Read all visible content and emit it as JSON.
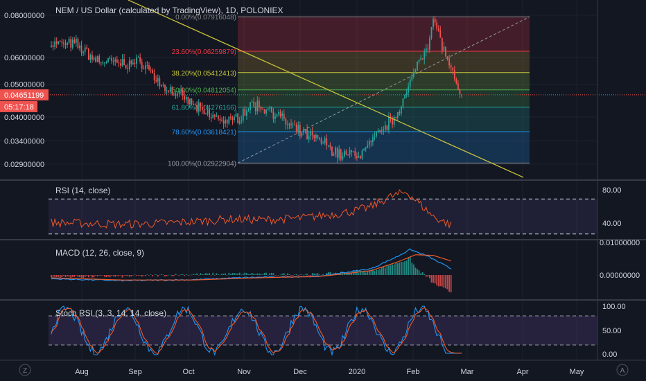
{
  "header": {
    "title": "NEM / US Dollar (calculated by TradingView), 1D, POLONIEX"
  },
  "price_axis": {
    "ticks": [
      "0.08000000",
      "0.06000000",
      "0.05000000",
      "0.04000000",
      "0.03400000",
      "0.02900000"
    ],
    "current_price_label": "0.04651199",
    "countdown_label": "05:17:18"
  },
  "time_axis": {
    "labels": [
      "Aug",
      "Sep",
      "Oct",
      "Nov",
      "Dec",
      "2020",
      "Feb",
      "Mar",
      "Apr",
      "May"
    ]
  },
  "fib_levels": [
    {
      "label": "0.00%(0.07916048)",
      "value": 0.07916048,
      "color": "#888888"
    },
    {
      "label": "23.60%(0.06259879)",
      "value": 0.06259879,
      "color": "#f23645"
    },
    {
      "label": "38.20%(0.05412413)",
      "value": 0.05412413,
      "color": "#c8c83a"
    },
    {
      "label": "50.00%(0.04812054)",
      "value": 0.04812054,
      "color": "#4caf50"
    },
    {
      "label": "61.80%(0.04276166)",
      "value": 0.04276166,
      "color": "#26a69a"
    },
    {
      "label": "78.60%(0.03618421)",
      "value": 0.03618421,
      "color": "#2196f3"
    },
    {
      "label": "100.00%(0.02922904)",
      "value": 0.02922904,
      "color": "#9598a1"
    }
  ],
  "rsi": {
    "title": "RSI (14, close)",
    "ticks": [
      "80.00",
      "40.00"
    ],
    "color": "#f05a28"
  },
  "macd": {
    "title": "MACD (12, 26, close, 9)",
    "ticks": [
      "0.01000000",
      "0.00000000"
    ],
    "macd_color": "#2196f3",
    "signal_color": "#f05a28"
  },
  "stoch": {
    "title": "Stoch RSI (3, 3, 14, 14, close)",
    "ticks": [
      "100.00",
      "50.00",
      "0.00"
    ],
    "k_color": "#2196f3",
    "d_color": "#f05a28"
  },
  "colors": {
    "background": "#131722",
    "up": "#26a69a",
    "down": "#ef5350",
    "trendline": "#c8c13a",
    "price_label": "#ef5350"
  },
  "chart_data": [
    {
      "type": "candlestick",
      "title": "NEM / US Dollar (calculated by TradingView), 1D, POLONIEX",
      "ylim": [
        0.027,
        0.084
      ],
      "y_scale": "log",
      "x_period": [
        "2019-07-11",
        "2020-02-25"
      ],
      "current_price": 0.04651199,
      "ohlc_keypoints": [
        {
          "date": "2019-07-12",
          "close": 0.066
        },
        {
          "date": "2019-07-25",
          "close": 0.0655
        },
        {
          "date": "2019-08-05",
          "close": 0.059
        },
        {
          "date": "2019-08-20",
          "close": 0.0575
        },
        {
          "date": "2019-09-01",
          "close": 0.058
        },
        {
          "date": "2019-09-10",
          "close": 0.05
        },
        {
          "date": "2019-09-25",
          "close": 0.045
        },
        {
          "date": "2019-10-05",
          "close": 0.041
        },
        {
          "date": "2019-10-20",
          "close": 0.0385
        },
        {
          "date": "2019-11-01",
          "close": 0.0435
        },
        {
          "date": "2019-11-12",
          "close": 0.042
        },
        {
          "date": "2019-11-25",
          "close": 0.0365
        },
        {
          "date": "2019-12-10",
          "close": 0.034
        },
        {
          "date": "2019-12-20",
          "close": 0.031
        },
        {
          "date": "2020-01-01",
          "close": 0.031
        },
        {
          "date": "2020-01-10",
          "close": 0.035
        },
        {
          "date": "2020-01-20",
          "close": 0.04
        },
        {
          "date": "2020-01-28",
          "close": 0.048
        },
        {
          "date": "2020-02-02",
          "close": 0.058
        },
        {
          "date": "2020-02-08",
          "close": 0.066
        },
        {
          "date": "2020-02-11",
          "close": 0.0775
        },
        {
          "date": "2020-02-14",
          "close": 0.071
        },
        {
          "date": "2020-02-18",
          "close": 0.0605
        },
        {
          "date": "2020-02-21",
          "close": 0.056
        },
        {
          "date": "2020-02-25",
          "close": 0.0465
        }
      ]
    },
    {
      "type": "line",
      "title": "RSI (14, close)",
      "ylim": [
        25,
        90
      ],
      "bands": [
        70,
        30
      ],
      "keypoints": [
        [
          0,
          43
        ],
        [
          20,
          42
        ],
        [
          40,
          41
        ],
        [
          60,
          42
        ],
        [
          80,
          44
        ],
        [
          100,
          47
        ],
        [
          120,
          46
        ],
        [
          140,
          48
        ],
        [
          160,
          53
        ],
        [
          170,
          56
        ],
        [
          180,
          61
        ],
        [
          190,
          72
        ],
        [
          200,
          78
        ],
        [
          205,
          69
        ],
        [
          215,
          50
        ],
        [
          225,
          40
        ]
      ]
    },
    {
      "type": "line",
      "title": "MACD (12, 26, close, 9)",
      "series": [
        {
          "name": "MACD",
          "keypoints": [
            [
              0,
              -0.0012
            ],
            [
              40,
              -0.0018
            ],
            [
              80,
              -0.0015
            ],
            [
              110,
              -0.0008
            ],
            [
              130,
              -0.0006
            ],
            [
              150,
              -0.0004
            ],
            [
              165,
              0.0008
            ],
            [
              180,
              0.002
            ],
            [
              195,
              0.006
            ],
            [
              202,
              0.0082
            ],
            [
              212,
              0.006
            ],
            [
              225,
              0.002
            ]
          ]
        },
        {
          "name": "Signal",
          "keypoints": [
            [
              0,
              -0.0009
            ],
            [
              40,
              -0.0016
            ],
            [
              80,
              -0.0016
            ],
            [
              110,
              -0.001
            ],
            [
              130,
              -0.0007
            ],
            [
              150,
              -0.0005
            ],
            [
              165,
              0.0004
            ],
            [
              180,
              0.0014
            ],
            [
              195,
              0.0042
            ],
            [
              205,
              0.0065
            ],
            [
              215,
              0.0063
            ],
            [
              225,
              0.0045
            ]
          ]
        }
      ]
    },
    {
      "type": "line",
      "title": "Stoch RSI (3, 3, 14, 14, close)",
      "ylim": [
        0,
        100
      ],
      "bands": [
        80,
        20
      ]
    }
  ]
}
